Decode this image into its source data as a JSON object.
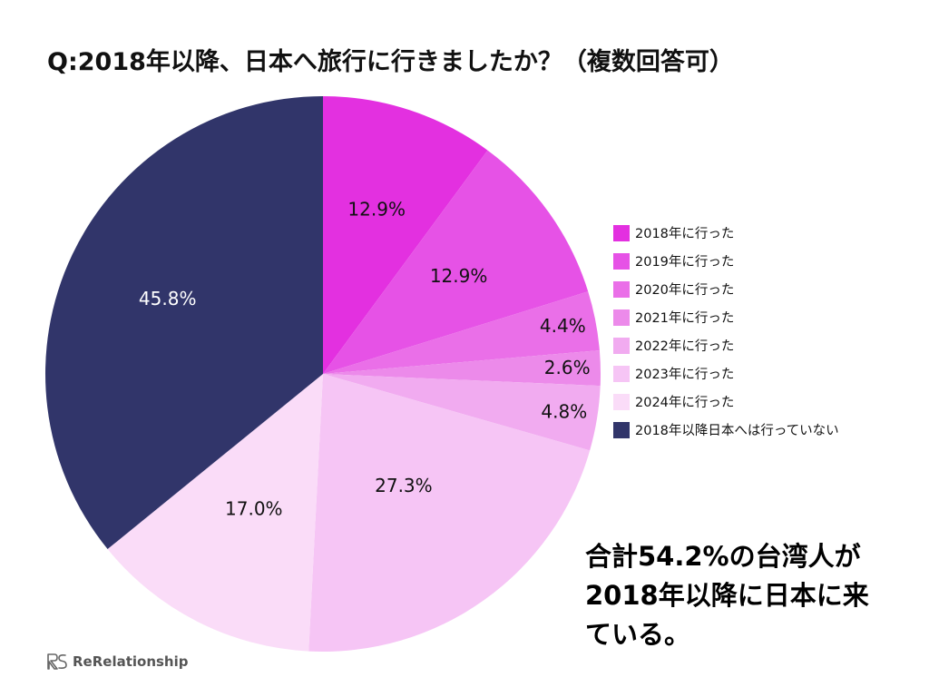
{
  "chart_data": {
    "type": "pie",
    "title": "Q:2018年以降、日本へ旅行に行きましたか？（複数回答可）",
    "categories": [
      "2018年に行った",
      "2019年に行った",
      "2020年に行った",
      "2021年に行った",
      "2022年に行った",
      "2023年に行った",
      "2024年に行った",
      "2018年以降日本へは行っていない"
    ],
    "slice_labels": [
      "12.9%",
      "12.9%",
      "4.4%",
      "2.6%",
      "4.8%",
      "27.3%",
      "17.0%",
      "45.8%"
    ],
    "values": [
      12.9,
      12.9,
      4.4,
      2.6,
      4.8,
      27.3,
      17.0,
      45.8
    ],
    "colors": [
      "#e330e0",
      "#e652e6",
      "#ea6fe8",
      "#ec8aea",
      "#f1abf0",
      "#f6c5f5",
      "#fadcf8",
      "#31356a"
    ],
    "label_colors": [
      "#111111",
      "#111111",
      "#111111",
      "#111111",
      "#111111",
      "#111111",
      "#111111",
      "#ffffff"
    ],
    "start_angle_deg": 0,
    "direction": "clockwise",
    "legend_position": "right"
  },
  "annotation": {
    "lines": [
      "合計54.2%の台湾人が",
      "2018年以降に日本に来",
      "ている。"
    ]
  },
  "brand": {
    "name": "ReRelationship",
    "logo_icon": "rerelationship-logo-icon"
  }
}
